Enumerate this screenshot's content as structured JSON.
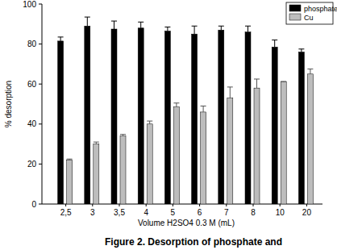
{
  "chart_data": {
    "type": "bar",
    "x_label": "Volume H2SO4 0.3 M (mL)",
    "y_label": "% desorption",
    "caption": "Figure 2. Desorption of phosphate and",
    "categories": [
      "2,5",
      "3",
      "3,5",
      "4",
      "5",
      "6",
      "7",
      "8",
      "10",
      "20"
    ],
    "series": [
      {
        "name": "phosphate",
        "color": "#000000",
        "values": [
          81.5,
          89,
          87.5,
          88,
          86.5,
          85,
          87,
          86,
          78.5,
          76
        ],
        "errors": [
          2,
          4.5,
          4,
          3,
          2,
          4,
          2,
          3,
          3.5,
          1.5
        ]
      },
      {
        "name": "Cu",
        "color": "#bdbdbd",
        "values": [
          22,
          30,
          34,
          40,
          48.5,
          46,
          53,
          58,
          61,
          65
        ],
        "errors": [
          0.5,
          1,
          0.8,
          1.5,
          2,
          3,
          5.5,
          4.5,
          0.3,
          2.5
        ]
      }
    ],
    "ylim": [
      0,
      100
    ],
    "yticks": [
      0,
      20,
      40,
      60,
      80,
      100
    ],
    "grid": false,
    "legend": "top-right"
  }
}
